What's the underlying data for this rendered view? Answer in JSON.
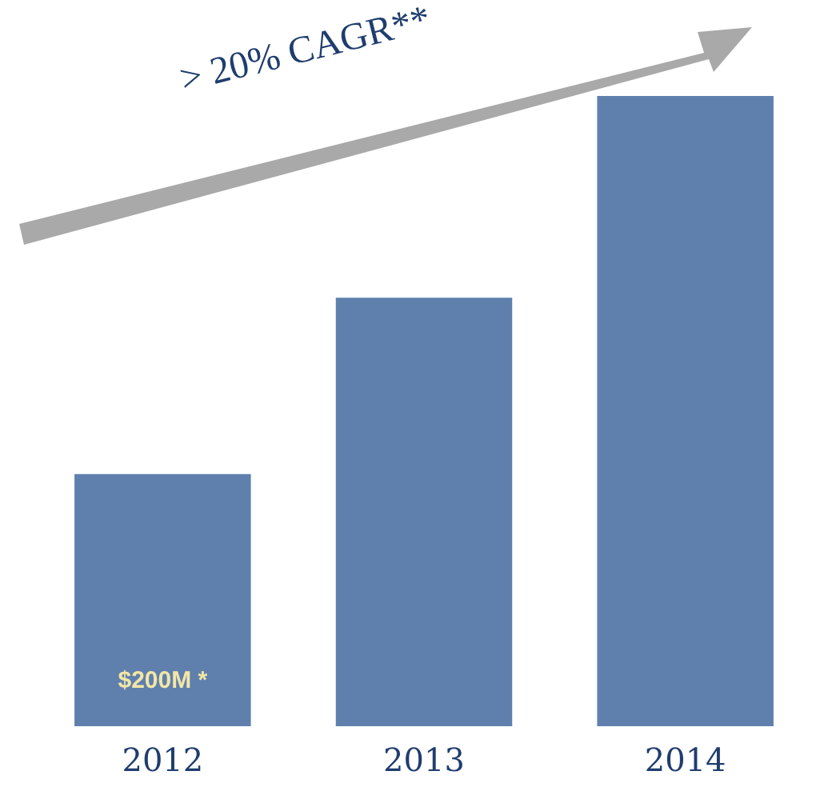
{
  "chart_data": {
    "type": "bar",
    "categories": [
      "2012",
      "2013",
      "2014"
    ],
    "values": [
      200,
      340,
      500
    ],
    "value_labels": [
      "$200M *",
      null,
      null
    ],
    "color": "#5f80ad",
    "ylim": [
      0,
      500
    ],
    "tick_labels": "x",
    "grid": false,
    "legend": false,
    "annotations": [
      "> 20% CAGR**"
    ]
  }
}
